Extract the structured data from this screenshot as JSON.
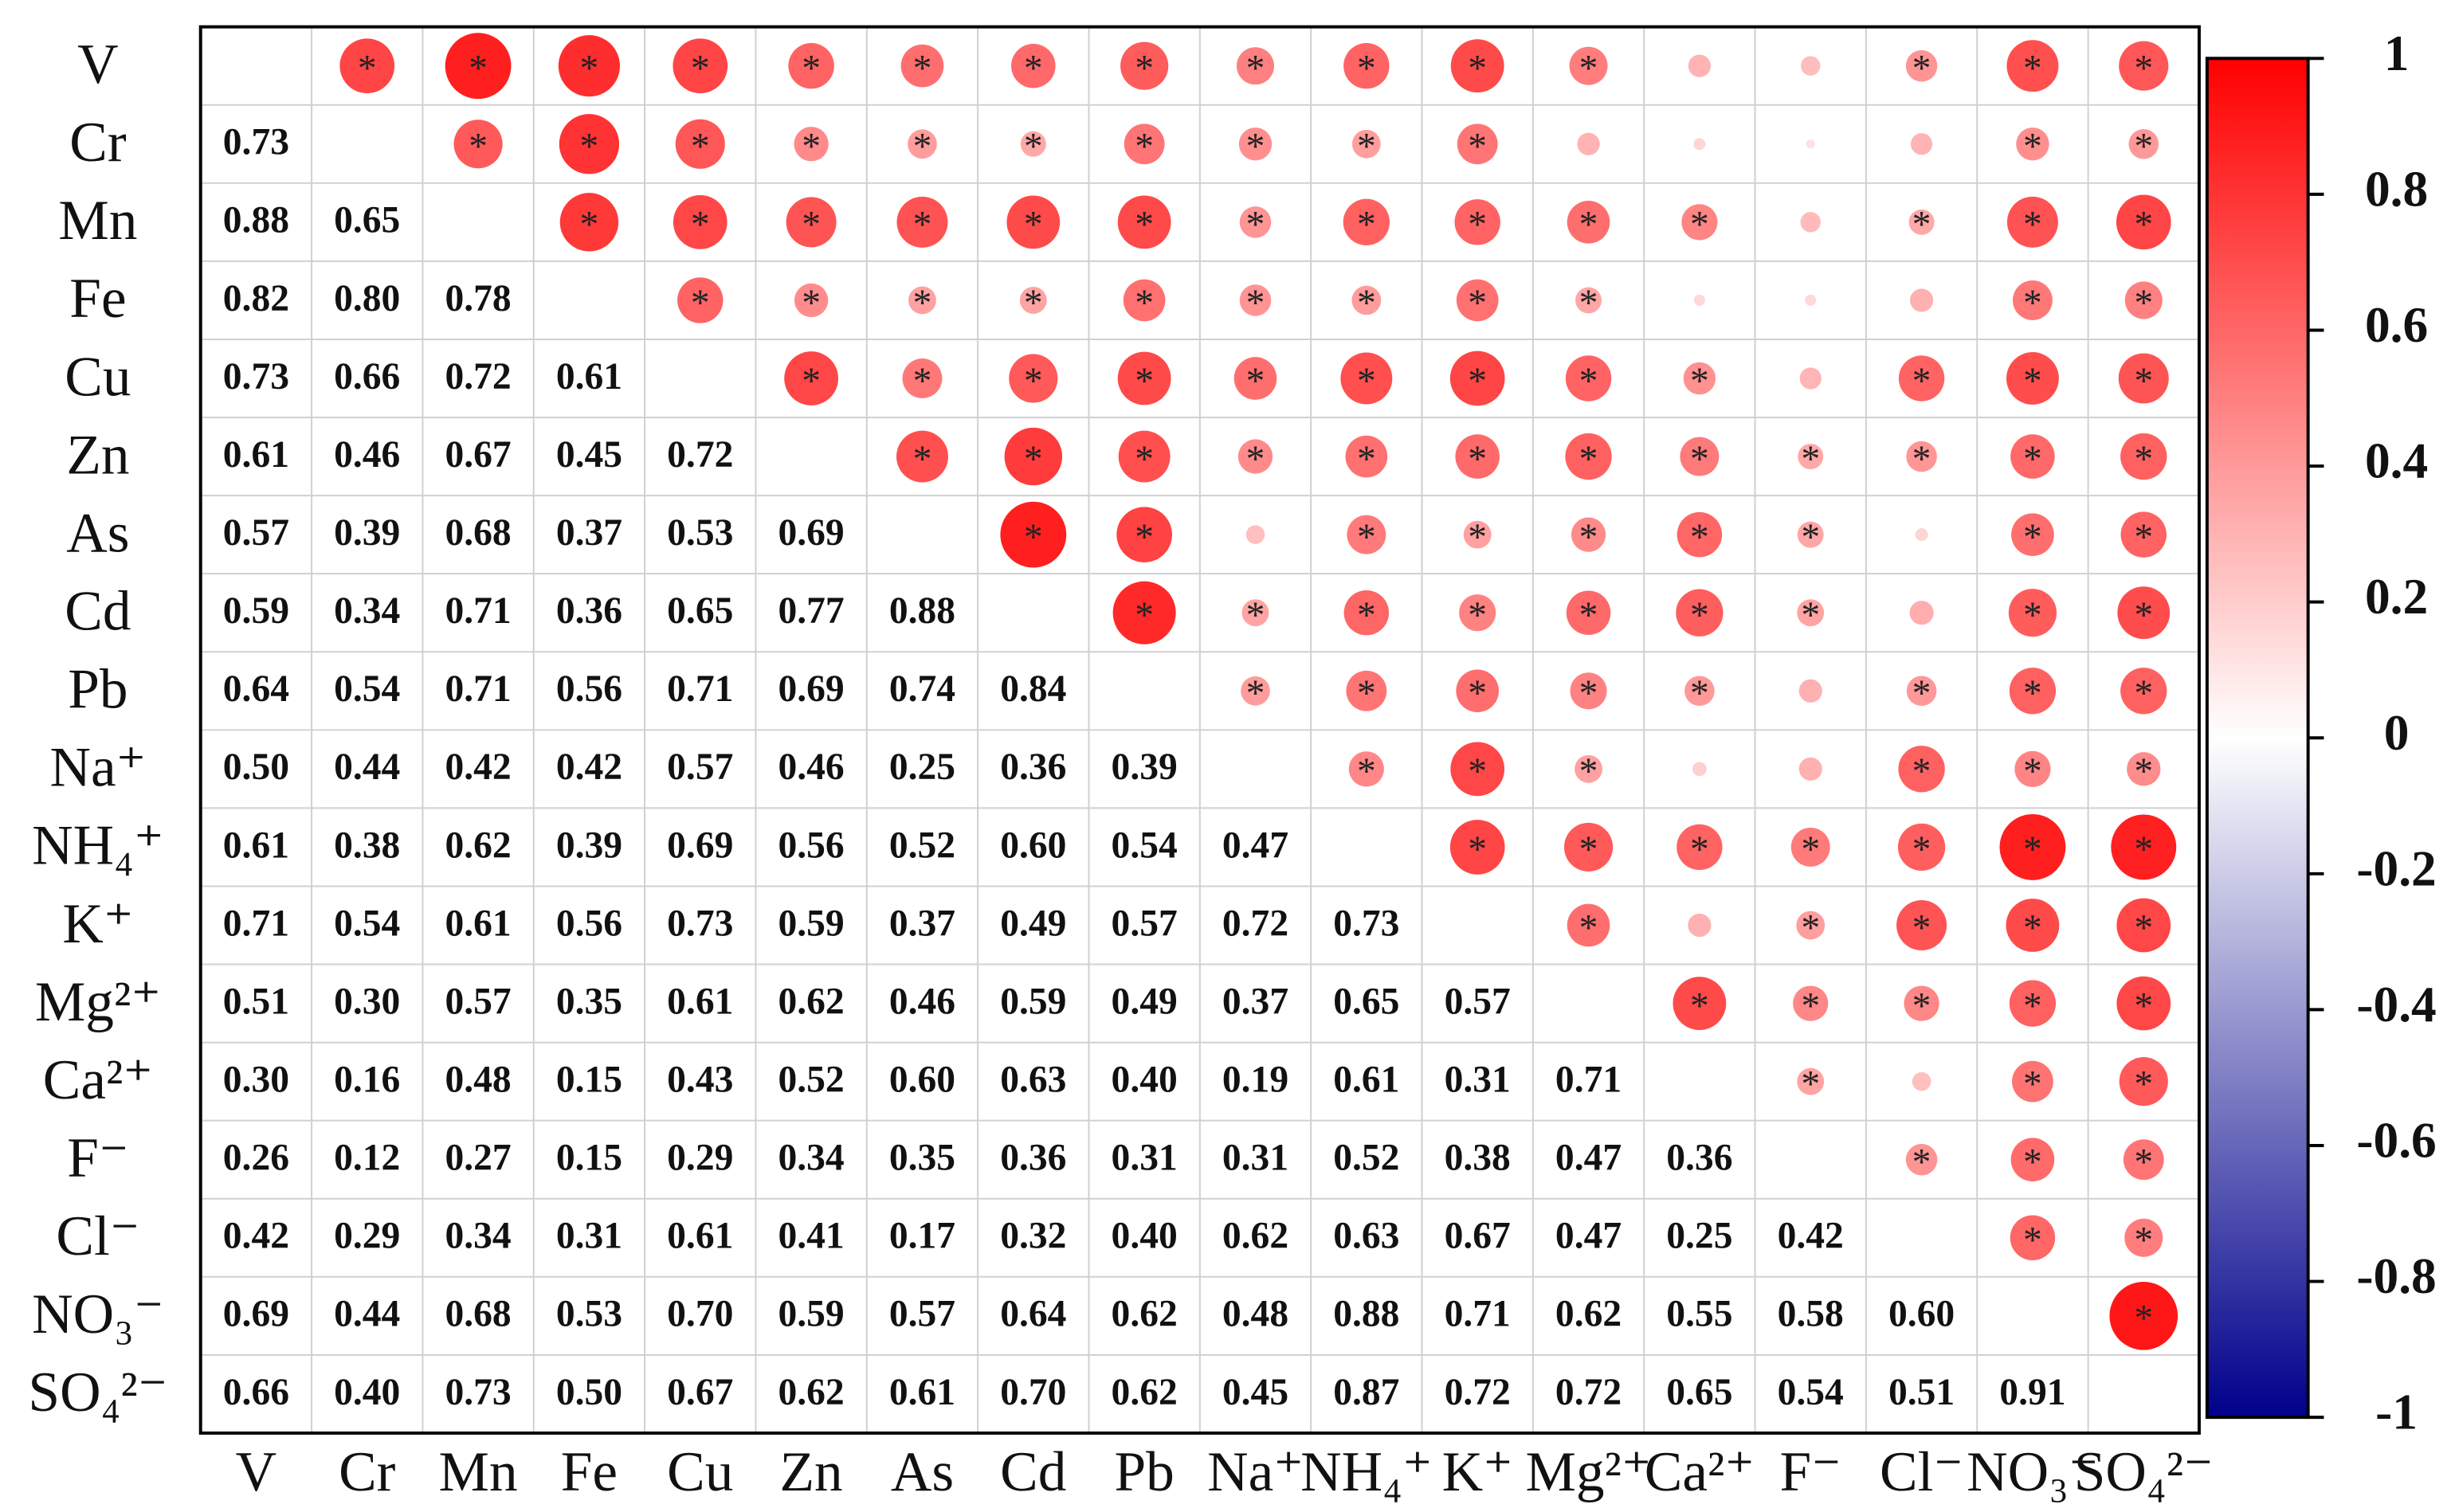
{
  "chart_data": {
    "type": "correlation",
    "variables": [
      "V",
      "Cr",
      "Mn",
      "Fe",
      "Cu",
      "Zn",
      "As",
      "Cd",
      "Pb",
      "Na⁺",
      "NH₄⁺",
      "K⁺",
      "Mg²⁺",
      "Ca²⁺",
      "F⁻",
      "Cl⁻",
      "NO₃⁻",
      "SO₄²⁻"
    ],
    "values": [
      [],
      [
        0.73
      ],
      [
        0.88,
        0.65
      ],
      [
        0.82,
        0.8,
        0.78
      ],
      [
        0.73,
        0.66,
        0.72,
        0.61
      ],
      [
        0.61,
        0.46,
        0.67,
        0.45,
        0.72
      ],
      [
        0.57,
        0.39,
        0.68,
        0.37,
        0.53,
        0.69
      ],
      [
        0.59,
        0.34,
        0.71,
        0.36,
        0.65,
        0.77,
        0.88
      ],
      [
        0.64,
        0.54,
        0.71,
        0.56,
        0.71,
        0.69,
        0.74,
        0.84
      ],
      [
        0.5,
        0.44,
        0.42,
        0.42,
        0.57,
        0.46,
        0.25,
        0.36,
        0.39
      ],
      [
        0.61,
        0.38,
        0.62,
        0.39,
        0.69,
        0.56,
        0.52,
        0.6,
        0.54,
        0.47
      ],
      [
        0.71,
        0.54,
        0.61,
        0.56,
        0.73,
        0.59,
        0.37,
        0.49,
        0.57,
        0.72,
        0.73
      ],
      [
        0.51,
        0.3,
        0.57,
        0.35,
        0.61,
        0.62,
        0.46,
        0.59,
        0.49,
        0.37,
        0.65,
        0.57
      ],
      [
        0.3,
        0.16,
        0.48,
        0.15,
        0.43,
        0.52,
        0.6,
        0.63,
        0.4,
        0.19,
        0.61,
        0.31,
        0.71
      ],
      [
        0.26,
        0.12,
        0.27,
        0.15,
        0.29,
        0.34,
        0.35,
        0.36,
        0.31,
        0.31,
        0.52,
        0.38,
        0.47,
        0.36
      ],
      [
        0.42,
        0.29,
        0.34,
        0.31,
        0.61,
        0.41,
        0.17,
        0.32,
        0.4,
        0.62,
        0.63,
        0.67,
        0.47,
        0.25,
        0.42
      ],
      [
        0.69,
        0.44,
        0.68,
        0.53,
        0.7,
        0.59,
        0.57,
        0.64,
        0.62,
        0.48,
        0.88,
        0.71,
        0.62,
        0.55,
        0.58,
        0.6
      ],
      [
        0.66,
        0.4,
        0.73,
        0.5,
        0.67,
        0.62,
        0.61,
        0.7,
        0.62,
        0.45,
        0.87,
        0.72,
        0.72,
        0.65,
        0.54,
        0.51,
        0.91
      ]
    ],
    "value_labels": [
      [],
      [
        "0.73"
      ],
      [
        "0.88",
        "0.65"
      ],
      [
        "0.82",
        "0.80",
        "0.78"
      ],
      [
        "0.73",
        "0.66",
        "0.72",
        "0.61"
      ],
      [
        "0.61",
        "0.46",
        "0.67",
        "0.45",
        "0.72"
      ],
      [
        "0.57",
        "0.39",
        "0.68",
        "0.37",
        "0.53",
        "0.69"
      ],
      [
        "0.59",
        "0.34",
        "0.71",
        "0.36",
        "0.65",
        "0.77",
        "0.88"
      ],
      [
        "0.64",
        "0.54",
        "0.71",
        "0.56",
        "0.71",
        "0.69",
        "0.74",
        "0.84"
      ],
      [
        "0.50",
        "0.44",
        "0.42",
        "0.42",
        "0.57",
        "0.46",
        "0.25",
        "0.36",
        "0.39"
      ],
      [
        "0.61",
        "0.38",
        "0.62",
        "0.39",
        "0.69",
        "0.56",
        "0.52",
        "0.60",
        "0.54",
        "0.47"
      ],
      [
        "0.71",
        "0.54",
        "0.61",
        "0.56",
        "0.73",
        "0.59",
        "0.37",
        "0.49",
        "0.57",
        "0.72",
        "0.73"
      ],
      [
        "0.51",
        "0.30",
        "0.57",
        "0.35",
        "0.61",
        "0.62",
        "0.46",
        "0.59",
        "0.49",
        "0.37",
        "0.65",
        "0.57"
      ],
      [
        "0.30",
        "0.16",
        "0.48",
        "0.15",
        "0.43",
        "0.52",
        "0.60",
        "0.63",
        "0.40",
        "0.19",
        "0.61",
        "0.31",
        "0.71"
      ],
      [
        "0.26",
        "0.12",
        "0.27",
        "0.15",
        "0.29",
        "0.34",
        "0.35",
        "0.36",
        "0.31",
        "0.31",
        "0.52",
        "0.38",
        "0.47",
        "0.36"
      ],
      [
        "0.42",
        "0.29",
        "0.34",
        "0.31",
        "0.61",
        "0.41",
        "0.17",
        "0.32",
        "0.40",
        "0.62",
        "0.63",
        "0.67",
        "0.47",
        "0.25",
        "0.42"
      ],
      [
        "0.69",
        "0.44",
        "0.68",
        "0.53",
        "0.70",
        "0.59",
        "0.57",
        "0.64",
        "0.62",
        "0.48",
        "0.88",
        "0.71",
        "0.62",
        "0.55",
        "0.58",
        "0.60"
      ],
      [
        "0.66",
        "0.40",
        "0.73",
        "0.50",
        "0.67",
        "0.62",
        "0.61",
        "0.70",
        "0.62",
        "0.45",
        "0.87",
        "0.72",
        "0.72",
        "0.65",
        "0.54",
        "0.51",
        "0.91"
      ]
    ],
    "significant": [
      [],
      [
        true
      ],
      [
        true,
        true
      ],
      [
        true,
        true,
        true
      ],
      [
        true,
        true,
        true,
        true
      ],
      [
        true,
        true,
        true,
        true,
        true
      ],
      [
        true,
        true,
        true,
        true,
        true,
        true
      ],
      [
        true,
        true,
        true,
        true,
        true,
        true,
        true
      ],
      [
        true,
        true,
        true,
        true,
        true,
        true,
        true,
        true
      ],
      [
        true,
        true,
        true,
        true,
        true,
        true,
        false,
        true,
        true
      ],
      [
        true,
        true,
        true,
        true,
        true,
        true,
        true,
        true,
        true,
        true
      ],
      [
        true,
        true,
        true,
        true,
        true,
        true,
        true,
        true,
        true,
        true,
        true
      ],
      [
        true,
        false,
        true,
        true,
        true,
        true,
        true,
        true,
        true,
        true,
        true,
        true
      ],
      [
        false,
        false,
        true,
        false,
        true,
        true,
        true,
        true,
        true,
        false,
        true,
        false,
        true
      ],
      [
        false,
        false,
        false,
        false,
        false,
        true,
        true,
        true,
        false,
        false,
        true,
        true,
        true,
        true
      ],
      [
        true,
        false,
        true,
        false,
        true,
        true,
        false,
        false,
        true,
        true,
        true,
        true,
        true,
        false,
        true
      ],
      [
        true,
        true,
        true,
        true,
        true,
        true,
        true,
        true,
        true,
        true,
        true,
        true,
        true,
        true,
        true,
        true
      ],
      [
        true,
        true,
        true,
        true,
        true,
        true,
        true,
        true,
        true,
        true,
        true,
        true,
        true,
        true,
        true,
        true,
        true
      ]
    ],
    "significance_marker": "*",
    "colormap": [
      "#00008b",
      "#ffffff",
      "#ff0000"
    ],
    "clim": [
      -1,
      1
    ],
    "cbar_ticks": [
      1,
      0.8,
      0.6,
      0.4,
      0.2,
      0,
      -0.2,
      -0.4,
      -0.6,
      -0.8,
      -1
    ]
  }
}
